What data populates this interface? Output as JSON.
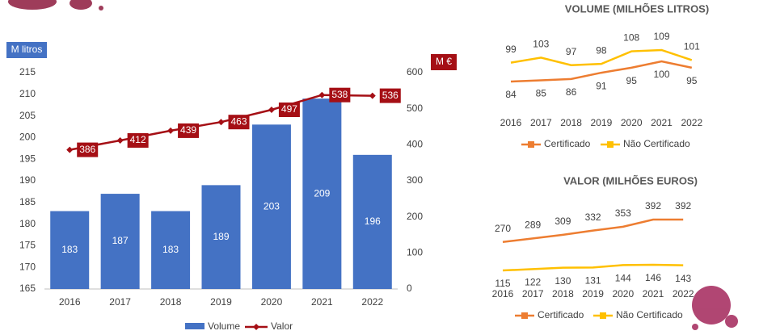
{
  "chart_data": [
    {
      "type": "combo",
      "categories": [
        "2016",
        "2017",
        "2018",
        "2019",
        "2020",
        "2021",
        "2022"
      ],
      "y_axis_label": "M litros",
      "y2_axis_label": "M €",
      "ylim": [
        165,
        215
      ],
      "yticks": [
        165,
        170,
        175,
        180,
        185,
        190,
        195,
        200,
        205,
        210,
        215
      ],
      "y2lim": [
        0,
        600
      ],
      "y2ticks": [
        0,
        100,
        200,
        300,
        400,
        500,
        600
      ],
      "series": [
        {
          "name": "Volume",
          "type": "bar",
          "color": "#4472c4",
          "values": [
            183,
            187,
            183,
            189,
            203,
            209,
            196
          ]
        },
        {
          "name": "Valor",
          "type": "line",
          "axis": "y2",
          "color": "#a50f15",
          "values": [
            386,
            412,
            439,
            463,
            497,
            538,
            536
          ]
        }
      ]
    },
    {
      "type": "line",
      "title": "VOLUME (MILHÕES LITROS)",
      "categories": [
        "2016",
        "2017",
        "2018",
        "2019",
        "2020",
        "2021",
        "2022"
      ],
      "series": [
        {
          "name": "Certificado",
          "color": "#ed7d31",
          "values": [
            84,
            85,
            86,
            91,
            95,
            100,
            95
          ]
        },
        {
          "name": "Não Certificado",
          "color": "#ffc000",
          "values": [
            99,
            103,
            97,
            98,
            108,
            109,
            101
          ]
        }
      ]
    },
    {
      "type": "line",
      "title": "VALOR (MILHÕES EUROS)",
      "categories": [
        "2016",
        "2017",
        "2018",
        "2019",
        "2020",
        "2021",
        "2022"
      ],
      "series": [
        {
          "name": "Certificado",
          "color": "#ed7d31",
          "values": [
            270,
            289,
            309,
            332,
            353,
            392,
            392
          ]
        },
        {
          "name": "Não Certificado",
          "color": "#ffc000",
          "values": [
            115,
            122,
            130,
            131,
            144,
            146,
            143
          ]
        }
      ]
    }
  ]
}
